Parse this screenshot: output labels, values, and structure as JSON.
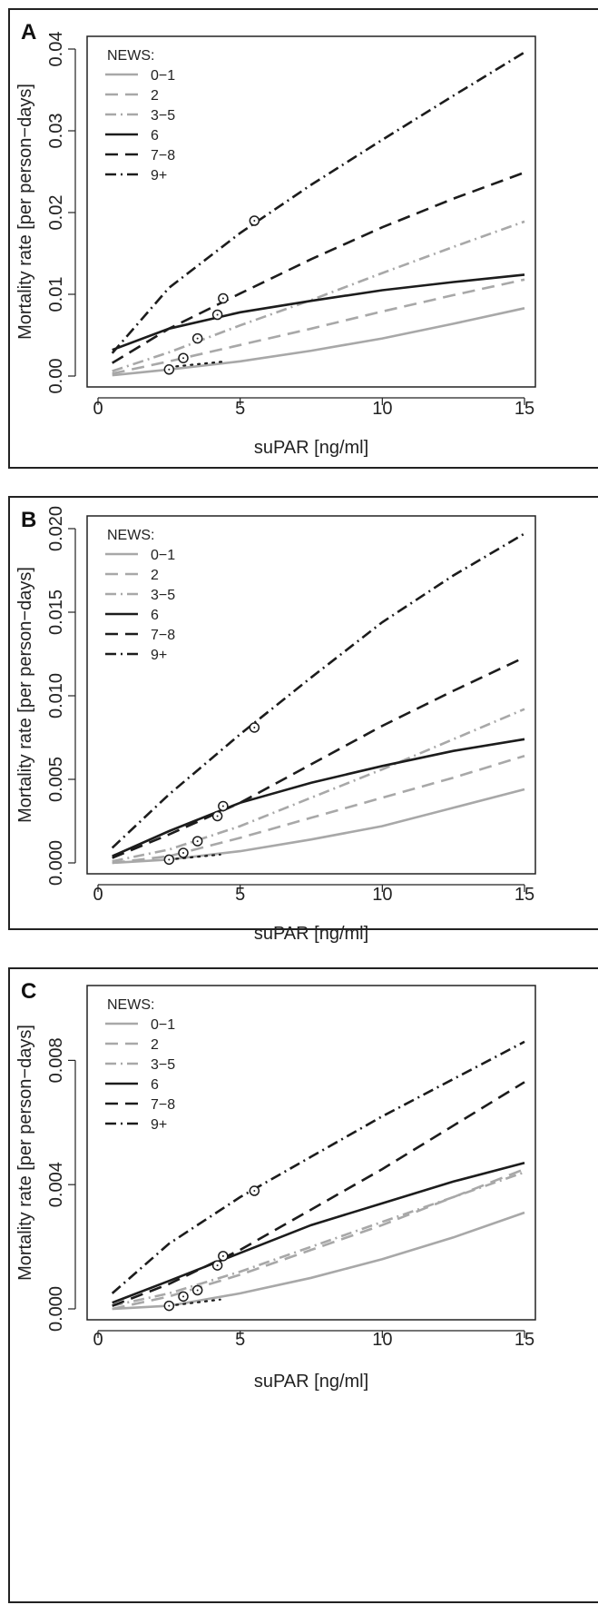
{
  "chart_data": [
    {
      "panel": "A",
      "type": "line",
      "xlabel": "suPAR [ng/ml]",
      "ylabel": "Mortality rate [per person−days]",
      "xlim": [
        0,
        15
      ],
      "ylim": [
        0,
        0.04
      ],
      "xticks": [
        "0",
        "5",
        "10",
        "15"
      ],
      "yticks": [
        "0.00",
        "0.01",
        "0.02",
        "0.03",
        "0.04"
      ],
      "legend_title": "NEWS:",
      "legend_position": "top-left",
      "grid": false,
      "series": [
        {
          "name": "0−1",
          "color": "#a8a8a8",
          "style": "solid",
          "x": [
            0.5,
            2.5,
            5,
            7.5,
            10,
            12.5,
            15
          ],
          "y": [
            0.0001,
            0.0008,
            0.0018,
            0.0031,
            0.0046,
            0.0064,
            0.0083
          ],
          "marker": [
            2.5,
            0.0008
          ]
        },
        {
          "name": "2",
          "color": "#a8a8a8",
          "style": "dashed",
          "x": [
            0.5,
            2.5,
            5,
            7.5,
            10,
            12.5,
            15
          ],
          "y": [
            0.0003,
            0.0018,
            0.0038,
            0.0058,
            0.0079,
            0.0099,
            0.0118
          ],
          "marker": [
            3.0,
            0.0022
          ]
        },
        {
          "name": "3−5",
          "color": "#a8a8a8",
          "style": "dashdot",
          "x": [
            0.5,
            2.5,
            5,
            7.5,
            10,
            12.5,
            15
          ],
          "y": [
            0.0006,
            0.0029,
            0.0062,
            0.0093,
            0.0126,
            0.0158,
            0.0189
          ],
          "marker": [
            3.5,
            0.0046
          ]
        },
        {
          "name": "6",
          "color": "#1c1c1c",
          "style": "solid",
          "x": [
            0.5,
            2.5,
            5,
            7.5,
            10,
            12.5,
            15
          ],
          "y": [
            0.0032,
            0.0058,
            0.0078,
            0.0092,
            0.0105,
            0.0115,
            0.0124
          ],
          "marker": [
            4.2,
            0.0075
          ]
        },
        {
          "name": "7−8",
          "color": "#1c1c1c",
          "style": "dashed",
          "x": [
            0.5,
            2.5,
            5,
            7.5,
            10,
            12.5,
            15
          ],
          "y": [
            0.0016,
            0.0058,
            0.0101,
            0.0143,
            0.0182,
            0.0217,
            0.0249
          ],
          "marker": [
            4.4,
            0.0095
          ]
        },
        {
          "name": "9+",
          "color": "#1c1c1c",
          "style": "dashdot",
          "x": [
            0.5,
            2.5,
            5,
            7.5,
            10,
            12.5,
            15
          ],
          "y": [
            0.0028,
            0.0108,
            0.0175,
            0.0234,
            0.0289,
            0.0343,
            0.0396
          ],
          "marker": [
            5.5,
            0.019
          ]
        }
      ],
      "dotted_segment": {
        "x": [
          2.5,
          4.5
        ],
        "y": [
          0.0011,
          0.0018
        ]
      }
    },
    {
      "panel": "B",
      "type": "line",
      "xlabel": "suPAR [ng/ml]",
      "ylabel": "Mortality rate [per person−days]",
      "xlim": [
        0,
        15
      ],
      "ylim": [
        0,
        0.02
      ],
      "xticks": [
        "0",
        "5",
        "10",
        "15"
      ],
      "yticks": [
        "0.000",
        "0.005",
        "0.010",
        "0.015",
        "0.020"
      ],
      "legend_title": "NEWS:",
      "legend_position": "top-left",
      "grid": false,
      "series": [
        {
          "name": "0−1",
          "color": "#a8a8a8",
          "style": "solid",
          "x": [
            0.5,
            2.5,
            5,
            7.5,
            10,
            12.5,
            15
          ],
          "y": [
            0.0,
            0.0002,
            0.0007,
            0.0014,
            0.0022,
            0.0033,
            0.0044
          ],
          "marker": [
            2.5,
            0.0002
          ]
        },
        {
          "name": "2",
          "color": "#a8a8a8",
          "style": "dashed",
          "x": [
            0.5,
            2.5,
            5,
            7.5,
            10,
            12.5,
            15
          ],
          "y": [
            0.0,
            0.0004,
            0.0015,
            0.0027,
            0.0039,
            0.0051,
            0.0064
          ],
          "marker": [
            3.0,
            0.0006
          ]
        },
        {
          "name": "3−5",
          "color": "#a8a8a8",
          "style": "dashdot",
          "x": [
            0.5,
            2.5,
            5,
            7.5,
            10,
            12.5,
            15
          ],
          "y": [
            0.0001,
            0.0008,
            0.0022,
            0.0039,
            0.0056,
            0.0074,
            0.0092
          ],
          "marker": [
            3.5,
            0.0013
          ]
        },
        {
          "name": "6",
          "color": "#1c1c1c",
          "style": "solid",
          "x": [
            0.5,
            2.5,
            5,
            7.5,
            10,
            12.5,
            15
          ],
          "y": [
            0.0004,
            0.0019,
            0.0036,
            0.0048,
            0.0058,
            0.0067,
            0.0074
          ],
          "marker": [
            4.4,
            0.0034
          ]
        },
        {
          "name": "7−8",
          "color": "#1c1c1c",
          "style": "dashed",
          "x": [
            0.5,
            2.5,
            5,
            7.5,
            10,
            12.5,
            15
          ],
          "y": [
            0.0003,
            0.0017,
            0.0036,
            0.0059,
            0.0082,
            0.0103,
            0.0123
          ],
          "marker": [
            4.2,
            0.0028
          ]
        },
        {
          "name": "9+",
          "color": "#1c1c1c",
          "style": "dashdot",
          "x": [
            0.5,
            2.5,
            5,
            7.5,
            10,
            12.5,
            15
          ],
          "y": [
            0.0009,
            0.0041,
            0.0077,
            0.0111,
            0.0144,
            0.0172,
            0.0197
          ],
          "marker": [
            5.5,
            0.0081
          ]
        }
      ],
      "dotted_segment": {
        "x": [
          2.5,
          4.3
        ],
        "y": [
          0.0002,
          0.0005
        ]
      }
    },
    {
      "panel": "C",
      "type": "line",
      "xlabel": "suPAR [ng/ml]",
      "ylabel": "Mortality rate [per person−days]",
      "xlim": [
        0,
        15
      ],
      "ylim": [
        0,
        0.01
      ],
      "xticks": [
        "0",
        "5",
        "10",
        "15"
      ],
      "yticks": [
        "0.000",
        "0.004",
        "0.008"
      ],
      "legend_title": "NEWS:",
      "legend_position": "top-left",
      "grid": false,
      "series": [
        {
          "name": "0−1",
          "color": "#a8a8a8",
          "style": "solid",
          "x": [
            0.5,
            2.5,
            5,
            7.5,
            10,
            12.5,
            15
          ],
          "y": [
            0.0,
            0.0001,
            0.0005,
            0.001,
            0.0016,
            0.0023,
            0.0031
          ],
          "marker": [
            2.5,
            0.0001
          ]
        },
        {
          "name": "2",
          "color": "#a8a8a8",
          "style": "dashed",
          "x": [
            0.5,
            2.5,
            5,
            7.5,
            10,
            12.5,
            15
          ],
          "y": [
            0.0,
            0.0004,
            0.0011,
            0.0019,
            0.0027,
            0.0036,
            0.0045
          ],
          "marker": [
            3.0,
            0.0004
          ]
        },
        {
          "name": "3−5",
          "color": "#a8a8a8",
          "style": "dashdot",
          "x": [
            0.5,
            2.5,
            5,
            7.5,
            10,
            12.5,
            15
          ],
          "y": [
            0.0001,
            0.0005,
            0.0012,
            0.002,
            0.0028,
            0.0036,
            0.0044
          ],
          "marker": [
            3.5,
            0.0006
          ]
        },
        {
          "name": "6",
          "color": "#1c1c1c",
          "style": "solid",
          "x": [
            0.5,
            2.5,
            5,
            7.5,
            10,
            12.5,
            15
          ],
          "y": [
            0.0002,
            0.0009,
            0.0018,
            0.0027,
            0.0034,
            0.0041,
            0.0047
          ],
          "marker": [
            4.4,
            0.0017
          ]
        },
        {
          "name": "7−8",
          "color": "#1c1c1c",
          "style": "dashed",
          "x": [
            0.5,
            2.5,
            5,
            7.5,
            10,
            12.5,
            15
          ],
          "y": [
            0.0001,
            0.0008,
            0.0019,
            0.0032,
            0.0045,
            0.0059,
            0.0073
          ],
          "marker": [
            4.2,
            0.0014
          ]
        },
        {
          "name": "9+",
          "color": "#1c1c1c",
          "style": "dashdot",
          "x": [
            0.5,
            2.5,
            5,
            7.5,
            10,
            12.5,
            15
          ],
          "y": [
            0.0005,
            0.0021,
            0.0036,
            0.0049,
            0.0062,
            0.0074,
            0.0086
          ],
          "marker": [
            5.5,
            0.0038
          ]
        }
      ],
      "dotted_segment": {
        "x": [
          2.5,
          4.3
        ],
        "y": [
          0.0001,
          0.0003
        ]
      }
    }
  ]
}
